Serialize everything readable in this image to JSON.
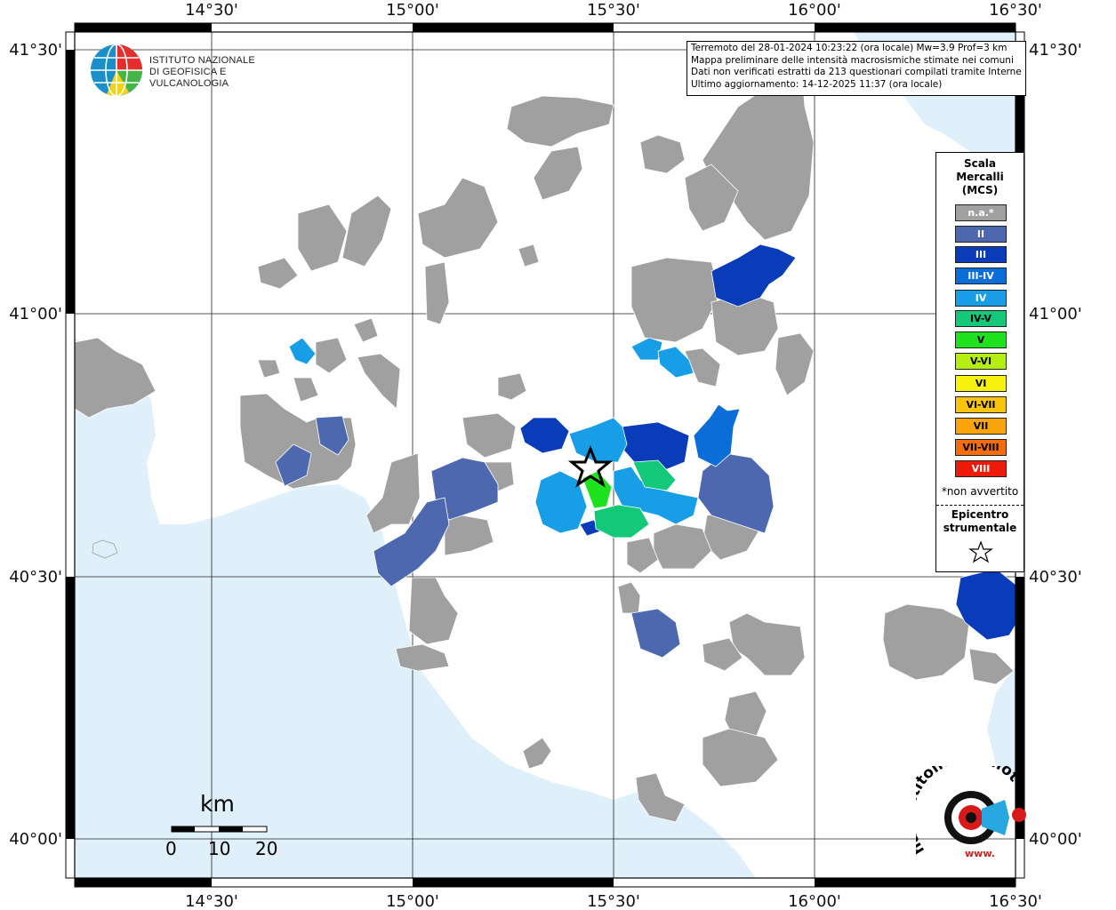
{
  "info_box": {
    "line1": "Terremoto del 28-01-2024 10:23:22 (ora locale) Mw=3.9 Prof=3 km",
    "line2": "Mappa preliminare delle intensità macrosismiche stimate nei comuni",
    "line3": "Dati non verificati estratti da 213 questionari compilati tramite Internet.",
    "line4": "Ultimo aggiornamento: 14-12-2025 11:37 (ora locale)"
  },
  "logo": {
    "line1": "ISTITUTO NAZIONALE",
    "line2": "DI GEOFISICA E VULCANOLOGIA"
  },
  "axes": {
    "top_labels": [
      "14°30'",
      "15°00'",
      "15°30'",
      "16°00'",
      "16°30'"
    ],
    "bottom_labels": [
      "14°30'",
      "15°00'",
      "15°30'",
      "16°00'",
      "16°30'"
    ],
    "left_labels": [
      "41°30'",
      "41°00'",
      "40°30'",
      "40°00'"
    ],
    "right_labels": [
      "41°30'",
      "41°00'",
      "40°30'",
      "40°00'"
    ]
  },
  "legend": {
    "title1": "Scala",
    "title2": "Mercalli",
    "title3": "(MCS)",
    "items": [
      {
        "label": "n.a.*",
        "color": "#a0a0a0"
      },
      {
        "label": "II",
        "color": "#4e68b0"
      },
      {
        "label": "III",
        "color": "#0a3bb8"
      },
      {
        "label": "III-IV",
        "color": "#0b6ed8"
      },
      {
        "label": "IV",
        "color": "#189ee6"
      },
      {
        "label": "IV-V",
        "color": "#14c879"
      },
      {
        "label": "V",
        "color": "#1ee21e"
      },
      {
        "label": "V-VI",
        "color": "#b6ee14"
      },
      {
        "label": "VI",
        "color": "#f7f20f"
      },
      {
        "label": "VI-VII",
        "color": "#f8c40e"
      },
      {
        "label": "VII",
        "color": "#f8a40a"
      },
      {
        "label": "VII-VIII",
        "color": "#f36d0c"
      },
      {
        "label": "VIII",
        "color": "#ee1a0b"
      }
    ],
    "note": "*non avvertito",
    "epicenter1": "Epicentro",
    "epicenter2": "strumentale"
  },
  "scalebar": {
    "unit": "km",
    "labels": [
      "0",
      "10",
      "20"
    ]
  },
  "brand": {
    "text": "haisentitoilterremoto.it",
    "url_text": "www."
  },
  "colors": {
    "sea": "#dff0fb",
    "land": "#ffffff",
    "na": "#a0a0a0",
    "II": "#4e68b0",
    "III": "#0a3bb8",
    "IV": "#189ee6",
    "IV-V": "#14c879",
    "V": "#1ee21e"
  }
}
